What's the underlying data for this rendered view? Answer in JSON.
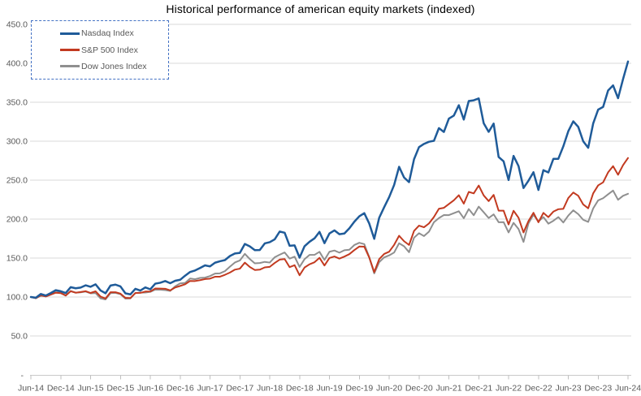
{
  "chart_data": {
    "type": "line",
    "title": "Historical performance of american equity markets (indexed)",
    "points_period": "monthly",
    "x_range": [
      "Jun-14",
      "Jun-24"
    ],
    "grid": true,
    "legend_position": "top-left",
    "x_axis": {
      "labels": [
        "Jun-14",
        "Dec-14",
        "Jun-15",
        "Dec-15",
        "Jun-16",
        "Dec-16",
        "Jun-17",
        "Dec-17",
        "Jun-18",
        "Dec-18",
        "Jun-19",
        "Dec-19",
        "Jun-20",
        "Dec-20",
        "Jun-21",
        "Dec-21",
        "Jun-22",
        "Dec-22",
        "Jun-23",
        "Dec-23",
        "Jun-24"
      ]
    },
    "y_axis": {
      "labels": [
        "450.0",
        "400.0",
        "350.0",
        "300.0",
        "250.0",
        "200.0",
        "150.0",
        "100.0",
        "50.0"
      ],
      "zero_label": "-",
      "min": 0,
      "max": 450
    },
    "series": [
      {
        "name": "Nasdaq Index",
        "color": "#1F5B99",
        "values": [
          100,
          99.1,
          103.9,
          101.9,
          105.1,
          108.7,
          107.4,
          105.2,
          112.6,
          111.2,
          112.1,
          115,
          113.1,
          116.3,
          108.4,
          104.8,
          114.7,
          115.9,
          113.6,
          104.7,
          103.4,
          110.5,
          108.3,
          112.3,
          109.9,
          117.1,
          118.3,
          120.5,
          117.7,
          120.8,
          122.1,
          127.4,
          132.1,
          134.1,
          137.2,
          140.6,
          139.3,
          144,
          145.9,
          147.4,
          152.6,
          155.9,
          156.6,
          168.1,
          165,
          160.2,
          160.3,
          168.8,
          170.4,
          174,
          184,
          182.5,
          165.7,
          166.3,
          150.5,
          165.2,
          170.9,
          175.3,
          183.6,
          169.1,
          181.6,
          185.5,
          180.6,
          181.5,
          188.1,
          196.6,
          203.6,
          207.6,
          194.3,
          174.7,
          201.7,
          215.3,
          228.2,
          243.8,
          267.1,
          253.4,
          247.5,
          276.8,
          292.4,
          296.5,
          299.3,
          300.5,
          316.8,
          311.9,
          329,
          332.9,
          346.2,
          327.8,
          351.6,
          352.5,
          354.9,
          323,
          312,
          322.6,
          279.8,
          274.1,
          250.2,
          281.1,
          268.1,
          239.9,
          249.3,
          260.2,
          237.4,
          262.8,
          259.9,
          277.3,
          277.4,
          293.4,
          312.8,
          325.5,
          318.4,
          299.9,
          291.5,
          322.7,
          340.5,
          344,
          365.1,
          371.6,
          355.2,
          379.6,
          402.3
        ]
      },
      {
        "name": "S&P 500 Index",
        "color": "#C23A20",
        "values": [
          100,
          98.5,
          102.2,
          100.6,
          103,
          105.5,
          105,
          101.8,
          107.4,
          105.5,
          106.4,
          107.5,
          105.2,
          107.3,
          100.6,
          98,
          106.1,
          106.1,
          104.3,
          99,
          98.6,
          105.1,
          105.3,
          107,
          107.1,
          110.9,
          110.8,
          110.6,
          108.5,
          112.2,
          114.2,
          116.3,
          120.6,
          120.5,
          121.6,
          123,
          123.6,
          126,
          126.1,
          128.5,
          131.4,
          135.1,
          136.4,
          144.1,
          138.5,
          134.7,
          135.1,
          138,
          138.7,
          143.7,
          148,
          148.7,
          138.3,
          140.8,
          127.9,
          137.9,
          142,
          144.6,
          150.3,
          140.4,
          150.1,
          152,
          149.3,
          151.9,
          155,
          160.2,
          164.8,
          164.6,
          150.7,
          131.9,
          148.6,
          155.3,
          158.1,
          166.9,
          178.6,
          171.6,
          166.8,
          184.8,
          191.6,
          189.5,
          194.4,
          202.7,
          213.3,
          214.5,
          219.3,
          224.2,
          230.7,
          219.8,
          234.9,
          233,
          243.1,
          230.4,
          223.1,
          231.1,
          210.8,
          210.8,
          193.1,
          210.7,
          201.8,
          182.9,
          197.5,
          208.1,
          195.9,
          208,
          202.5,
          209.6,
          212.7,
          213.2,
          227,
          234.1,
          230,
          218.8,
          213.9,
          233,
          243.3,
          247.2,
          260,
          268,
          256.9,
          269.2,
          278.5
        ]
      },
      {
        "name": "Dow Jones Index",
        "color": "#8F8F8F",
        "values": [
          100,
          98.4,
          101.6,
          101.3,
          103.4,
          106,
          105.9,
          102,
          107.8,
          105.6,
          106,
          107,
          104.7,
          105.1,
          98.2,
          96.8,
          105,
          105.3,
          103.6,
          97.9,
          98.2,
          105.1,
          105.6,
          105.7,
          106.6,
          109.5,
          109.4,
          108.8,
          107.8,
          113.7,
          117.5,
          118.1,
          123.7,
          122.8,
          124.5,
          124.9,
          126.9,
          130.1,
          130.4,
          133.2,
          138.9,
          144.3,
          146.9,
          155.4,
          148.7,
          143.2,
          143.6,
          145.1,
          144.2,
          151,
          154.3,
          157.2,
          149.3,
          151.8,
          138.6,
          148.6,
          154,
          154.1,
          158,
          147.5,
          158.1,
          159.7,
          156.9,
          160,
          160.7,
          166.7,
          169.6,
          167.9,
          151,
          130.3,
          144.7,
          150.9,
          153.4,
          157.1,
          169,
          165.1,
          157.5,
          176.1,
          181.9,
          178.2,
          183.8,
          196,
          201.3,
          205.2,
          205.1,
          207.6,
          210.1,
          201.1,
          212.9,
          205,
          216,
          208.8,
          201.4,
          206.1,
          196,
          196.1,
          182.9,
          195.2,
          187.3,
          170.7,
          194.5,
          205.6,
          197,
          202.6,
          194.1,
          197.8,
          202.6,
          195.6,
          204.5,
          211.3,
          206.4,
          199.1,
          196.4,
          213.7,
          224,
          226.8,
          231.8,
          236.6,
          224.8,
          229.9,
          232.5
        ]
      }
    ],
    "colors": {
      "gridline": "#D9D9D9",
      "axis_line": "#C9C9C9",
      "tick": "#BFBFBF",
      "axis_label": "#595959",
      "legend_border": "#4472C4"
    }
  }
}
